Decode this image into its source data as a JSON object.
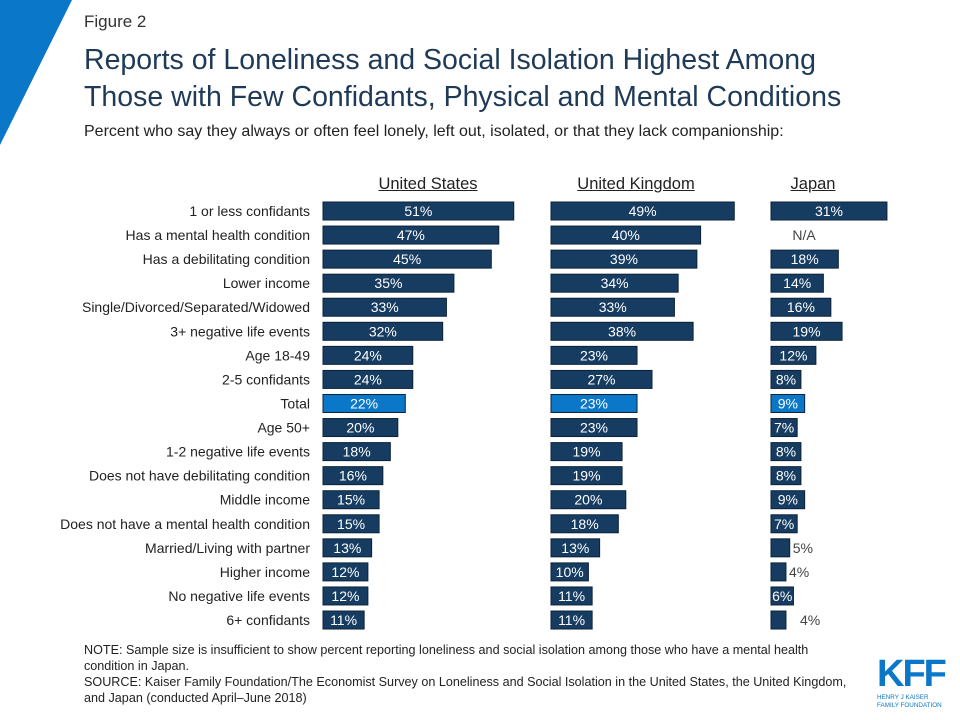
{
  "figure_label": "Figure 2",
  "title_lines": [
    "Reports of Loneliness and Social Isolation Highest Among",
    "Those with Few Confidants, Physical and Mental Conditions"
  ],
  "subtitle": "Percent who say they always or often feel lonely, left out, isolated, or that they lack companionship:",
  "colors": {
    "bar": "#163c62",
    "highlight": "#0b77c8",
    "accent": "#0b77c8"
  },
  "chart_data": {
    "type": "bar",
    "orientation": "horizontal",
    "value_format": "percent",
    "categories": [
      "1 or less confidants",
      "Has a mental health condition",
      "Has a debilitating condition",
      "Lower income",
      "Single/Divorced/Separated/Widowed",
      "3+ negative life events",
      "Age 18-49",
      "2-5 confidants",
      "Total",
      "Age 50+",
      "1-2 negative life events",
      "Does not have debilitating condition",
      "Middle income",
      "Does not have a mental health condition",
      "Married/Living with partner",
      "Higher income",
      "No negative life events",
      "6+ confidants"
    ],
    "highlight_category": "Total",
    "missing_label": "N/A",
    "series": [
      {
        "name": "United States",
        "values": [
          51,
          47,
          45,
          35,
          33,
          32,
          24,
          24,
          22,
          20,
          18,
          16,
          15,
          15,
          13,
          12,
          12,
          11
        ]
      },
      {
        "name": "United Kingdom",
        "values": [
          49,
          40,
          39,
          34,
          33,
          38,
          23,
          27,
          23,
          23,
          19,
          19,
          20,
          18,
          13,
          10,
          11,
          11
        ]
      },
      {
        "name": "Japan",
        "values": [
          31,
          null,
          18,
          14,
          16,
          19,
          12,
          8,
          9,
          7,
          8,
          8,
          9,
          7,
          5,
          4,
          6,
          4
        ]
      }
    ]
  },
  "notes": [
    "NOTE: Sample size is insufficient to show percent reporting loneliness and social isolation among those who have a mental health condition in Japan.",
    "SOURCE: Kaiser Family Foundation/The Economist Survey on Loneliness and Social Isolation in the United States, the United Kingdom, and Japan (conducted April–June 2018)"
  ],
  "logo": {
    "text": "KFF",
    "sub1": "HENRY J KAISER",
    "sub2": "FAMILY FOUNDATION"
  }
}
